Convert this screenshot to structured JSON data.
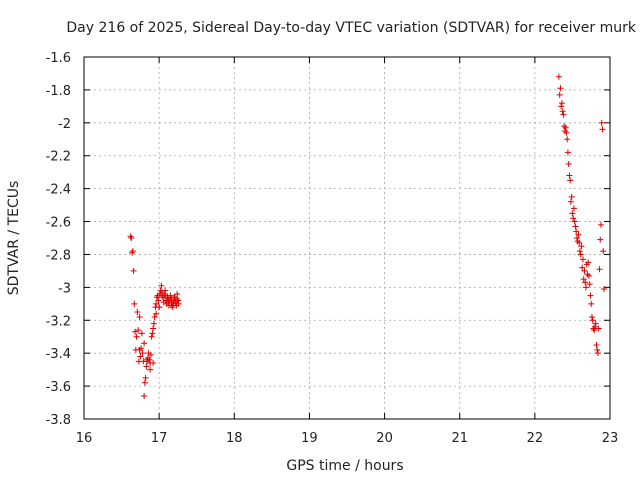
{
  "chart_data": {
    "type": "scatter",
    "title": "Day 216 of 2025, Sidereal Day-to-day VTEC variation (SDTVAR) for receiver murk",
    "xlabel": "GPS time / hours",
    "ylabel": "SDTVAR / TECUs",
    "xlim": [
      16,
      23
    ],
    "ylim": [
      -3.8,
      -1.6
    ],
    "xticks": [
      "16",
      "17",
      "18",
      "19",
      "20",
      "21",
      "22",
      "23"
    ],
    "yticks": [
      "-1.6",
      "-1.8",
      "-2",
      "-2.2",
      "-2.4",
      "-2.6",
      "-2.8",
      "-3",
      "-3.2",
      "-3.4",
      "-3.6",
      "-3.8"
    ],
    "grid": true,
    "marker": "+",
    "color": "#dd0000",
    "series": [
      {
        "name": "SDTVAR",
        "x": [
          16.62,
          16.63,
          16.64,
          16.65,
          16.66,
          16.67,
          16.68,
          16.69,
          16.7,
          16.71,
          16.72,
          16.73,
          16.74,
          16.74,
          16.75,
          16.76,
          16.77,
          16.78,
          16.79,
          16.8,
          16.81,
          16.82,
          16.83,
          16.84,
          16.85,
          16.86,
          16.87,
          16.88,
          16.89,
          16.9,
          16.91,
          16.92,
          16.93,
          16.94,
          16.95,
          16.96,
          16.97,
          16.98,
          16.99,
          17.0,
          17.01,
          17.02,
          17.03,
          17.04,
          17.05,
          17.06,
          17.07,
          17.08,
          17.09,
          17.1,
          17.11,
          17.12,
          17.13,
          17.14,
          17.15,
          17.16,
          17.17,
          17.18,
          17.19,
          17.2,
          17.21,
          17.22,
          17.23,
          17.24,
          17.25,
          17.26,
          16.8,
          16.84,
          16.88,
          16.92,
          16.96,
          17.0,
          17.04,
          17.08,
          17.12,
          17.16,
          17.2,
          17.24
        ],
        "y": [
          -2.69,
          -2.7,
          -2.79,
          -2.78,
          -2.9,
          -3.1,
          -3.27,
          -3.38,
          -3.3,
          -3.15,
          -3.26,
          -3.45,
          -3.38,
          -3.18,
          -3.42,
          -3.37,
          -3.28,
          -3.4,
          -3.45,
          -3.66,
          -3.58,
          -3.55,
          -3.48,
          -3.45,
          -3.43,
          -3.4,
          -3.44,
          -3.46,
          -3.41,
          -3.3,
          -3.28,
          -3.25,
          -3.22,
          -3.18,
          -3.12,
          -3.1,
          -3.06,
          -3.05,
          -3.08,
          -3.12,
          -3.04,
          -3.02,
          -2.99,
          -3.03,
          -3.06,
          -3.09,
          -3.05,
          -3.04,
          -3.08,
          -3.1,
          -3.06,
          -3.07,
          -3.11,
          -3.08,
          -3.05,
          -3.07,
          -3.09,
          -3.12,
          -3.1,
          -3.08,
          -3.06,
          -3.09,
          -3.11,
          -3.07,
          -3.08,
          -3.1,
          -3.34,
          -3.44,
          -3.5,
          -3.46,
          -3.16,
          -3.12,
          -3.05,
          -3.02,
          -3.09,
          -3.11,
          -3.06,
          -3.04
        ],
        "x2": [
          22.32,
          22.33,
          22.34,
          22.35,
          22.36,
          22.37,
          22.38,
          22.39,
          22.4,
          22.41,
          22.42,
          22.43,
          22.44,
          22.45,
          22.46,
          22.47,
          22.48,
          22.49,
          22.5,
          22.51,
          22.52,
          22.53,
          22.54,
          22.55,
          22.56,
          22.57,
          22.58,
          22.59,
          22.6,
          22.61,
          22.62,
          22.63,
          22.64,
          22.65,
          22.66,
          22.67,
          22.68,
          22.69,
          22.7,
          22.71,
          22.72,
          22.73,
          22.74,
          22.75,
          22.76,
          22.77,
          22.78,
          22.79,
          22.8,
          22.81,
          22.82,
          22.83,
          22.84,
          22.85,
          22.86,
          22.87,
          22.88,
          22.89,
          22.9,
          22.91,
          22.92
        ],
        "y2": [
          -1.72,
          -1.83,
          -1.79,
          -1.9,
          -1.88,
          -1.93,
          -1.95,
          -2.02,
          -2.05,
          -2.03,
          -2.06,
          -2.1,
          -2.18,
          -2.25,
          -2.32,
          -2.35,
          -2.48,
          -2.45,
          -2.55,
          -2.58,
          -2.52,
          -2.6,
          -2.63,
          -2.66,
          -2.7,
          -2.72,
          -2.68,
          -2.73,
          -2.78,
          -2.8,
          -2.75,
          -2.88,
          -2.83,
          -2.95,
          -2.9,
          -2.97,
          -3.0,
          -2.86,
          -2.92,
          -2.85,
          -2.93,
          -2.98,
          -3.05,
          -3.1,
          -3.18,
          -3.2,
          -3.25,
          -3.26,
          -3.24,
          -3.22,
          -3.35,
          -3.38,
          -3.4,
          -3.25,
          -2.89,
          -2.71,
          -2.62,
          -2.0,
          -2.04,
          -2.78,
          -3.01
        ]
      }
    ]
  }
}
